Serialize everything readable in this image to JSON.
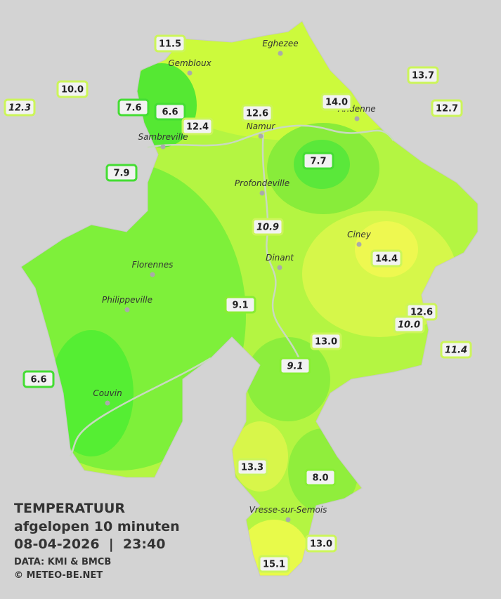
{
  "legend": {
    "title": "TEMPERATUUR",
    "subtitle": "afgelopen 10 minuten",
    "datetime": "08-04-2026  |  23:40",
    "source": "DATA: KMI & BMCB",
    "copyright": "© METEO-BE.NET"
  },
  "towns": [
    "Eghezee",
    "Gembloux",
    "Andenne",
    "Namur",
    "Sambreville",
    "Profondeville",
    "Ciney",
    "Dinant",
    "Florennes",
    "Philippeville",
    "Couvin",
    "Vresse-sur-Semois"
  ],
  "stations": [
    {
      "text": "11.5",
      "italic": false,
      "color": "#ccf55a"
    },
    {
      "text": "10.0",
      "italic": false,
      "color": "#ccf55a"
    },
    {
      "text": "12.3",
      "italic": true,
      "color": "#ccf55a"
    },
    {
      "text": "7.6",
      "italic": false,
      "color": "#44dd33"
    },
    {
      "text": "6.6",
      "italic": false,
      "color": "#44dd33"
    },
    {
      "text": "12.4",
      "italic": false,
      "color": "#ccf55a"
    },
    {
      "text": "12.6",
      "italic": false,
      "color": "#ccf55a"
    },
    {
      "text": "14.0",
      "italic": false,
      "color": "#ccf55a"
    },
    {
      "text": "13.7",
      "italic": false,
      "color": "#ccf55a"
    },
    {
      "text": "12.7",
      "italic": false,
      "color": "#ccf55a"
    },
    {
      "text": "7.9",
      "italic": false,
      "color": "#44dd33"
    },
    {
      "text": "7.7",
      "italic": false,
      "color": "#44dd33"
    },
    {
      "text": "10.9",
      "italic": true,
      "color": "#ccf55a"
    },
    {
      "text": "14.4",
      "italic": false,
      "color": "#ccf55a"
    },
    {
      "text": "9.1",
      "italic": false,
      "color": "#88ee33"
    },
    {
      "text": "12.6",
      "italic": false,
      "color": "#ccf55a"
    },
    {
      "text": "10.0",
      "italic": true,
      "color": "#ccf55a"
    },
    {
      "text": "11.4",
      "italic": true,
      "color": "#ccf55a"
    },
    {
      "text": "13.0",
      "italic": false,
      "color": "#ccf55a"
    },
    {
      "text": "9.1",
      "italic": true,
      "color": "#88ee33"
    },
    {
      "text": "6.6",
      "italic": false,
      "color": "#44dd33"
    },
    {
      "text": "13.3",
      "italic": false,
      "color": "#ccf55a"
    },
    {
      "text": "8.0",
      "italic": false,
      "color": "#88ee33"
    },
    {
      "text": "13.0",
      "italic": false,
      "color": "#ccf55a"
    },
    {
      "text": "15.1",
      "italic": false,
      "color": "#ccf55a"
    }
  ]
}
